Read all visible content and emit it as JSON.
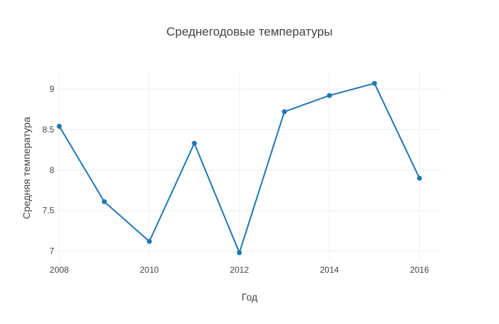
{
  "chart_data": {
    "type": "line",
    "title": "Среднегодовые температуры",
    "xlabel": "Год",
    "ylabel": "Средняя температура",
    "x": [
      2008,
      2009,
      2010,
      2011,
      2012,
      2013,
      2014,
      2015,
      2016
    ],
    "series": [
      {
        "values": [
          8.54,
          7.61,
          7.12,
          8.33,
          6.98,
          8.72,
          8.92,
          9.07,
          7.9
        ],
        "color": "#1f77b4"
      }
    ],
    "xlim": [
      2007.95,
      2016.5
    ],
    "ylim": [
      6.9,
      9.22
    ],
    "x_ticks": [
      "2008",
      "2010",
      "2012",
      "2014",
      "2016"
    ],
    "y_ticks": [
      "7",
      "7.5",
      "8",
      "8.5",
      "9"
    ],
    "grid": true,
    "legend": false,
    "markers": true
  }
}
